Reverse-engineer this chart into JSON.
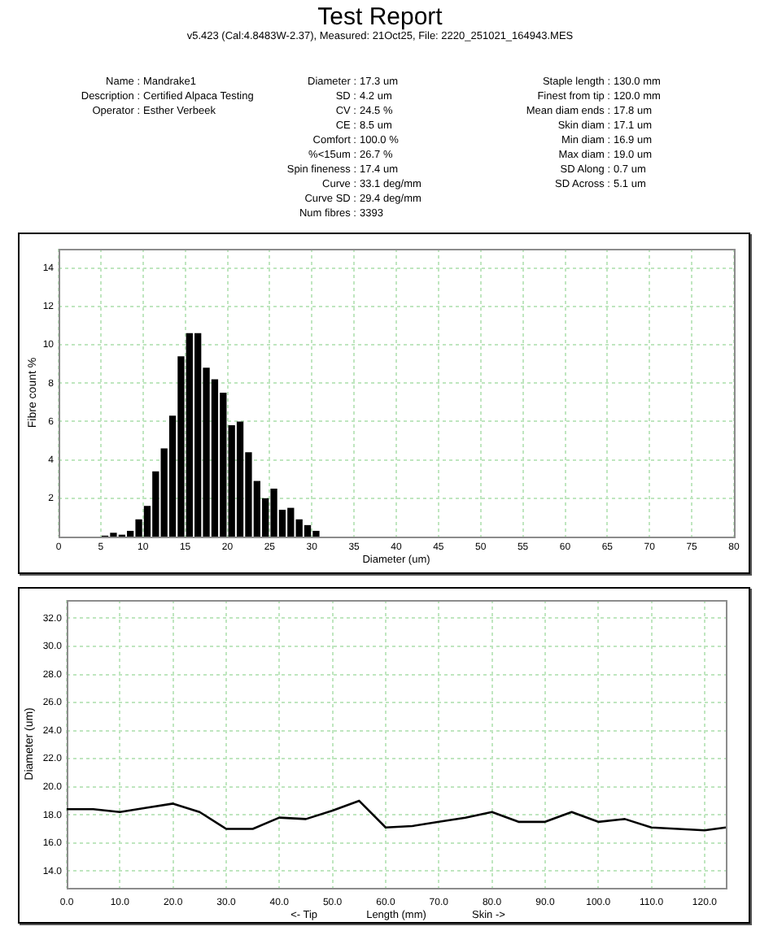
{
  "chart_data": [
    {
      "type": "other",
      "title": "Test Report",
      "subtitle": "v5.423 (Cal:4.8483W-2.37), Measured: 21Oct25, File: 2220_251021_164943.MES",
      "annotations": [
        "Name : Mandrake1",
        "Description : Certified Alpaca Testing",
        "Operator : Esther Verbeek",
        "Diameter : 17.3 um",
        "SD : 4.2 um",
        "CV : 24.5 %",
        "CE : 8.5 um",
        "Comfort : 100.0 %",
        "%<15um : 26.7 %",
        "Spin fineness : 17.4 um",
        "Curve : 33.1 deg/mm",
        "Curve SD : 29.4 deg/mm",
        "Num fibres : 3393",
        "Staple length : 130.0 mm",
        "Finest from tip : 120.0 mm",
        "Mean diam ends : 17.8 um",
        "Skin diam : 17.1 um",
        "Min diam : 16.9 um",
        "Max diam : 19.0 um",
        "SD Along : 0.7 um",
        "SD Across : 5.1 um"
      ]
    },
    {
      "type": "histogram",
      "xlabel": "Diameter (um)",
      "ylabel": "Fibre count %",
      "bins": [
        5,
        6,
        7,
        8,
        9,
        10,
        11,
        12,
        13,
        14,
        15,
        16,
        17,
        18,
        19,
        20,
        21,
        22,
        23,
        24,
        25,
        26,
        27,
        28,
        29,
        30,
        31
      ],
      "values": [
        0.05,
        0.2,
        0.1,
        0.3,
        0.9,
        1.6,
        3.4,
        4.6,
        6.3,
        9.4,
        10.6,
        10.6,
        8.8,
        8.2,
        7.5,
        5.8,
        6.0,
        4.4,
        2.9,
        2.0,
        2.5,
        1.4,
        1.5,
        0.9,
        0.6,
        0.3
      ],
      "color": "#000000",
      "xlim": [
        0,
        80
      ],
      "xticks": [
        0,
        5,
        10,
        15,
        20,
        25,
        30,
        35,
        40,
        45,
        50,
        55,
        60,
        65,
        70,
        75,
        80
      ],
      "ylim": [
        0,
        15
      ],
      "yticks": [
        2,
        4,
        6,
        8,
        10,
        12,
        14
      ],
      "grid": true
    },
    {
      "type": "line",
      "xlabel": "Length (mm)",
      "ylabel": "Diameter (um)",
      "annotations": [
        "<- Tip",
        "Skin ->"
      ],
      "x": [
        0,
        5,
        10,
        15,
        20,
        25,
        30,
        35,
        40,
        45,
        50,
        55,
        60,
        65,
        70,
        75,
        80,
        85,
        90,
        95,
        100,
        105,
        110,
        115,
        120,
        124
      ],
      "values": [
        18.4,
        18.4,
        18.2,
        18.5,
        18.8,
        18.2,
        17.0,
        17.0,
        17.8,
        17.7,
        18.3,
        19.0,
        17.1,
        17.2,
        17.5,
        17.8,
        18.2,
        17.5,
        17.5,
        18.2,
        17.5,
        17.7,
        17.1,
        17.0,
        16.9,
        17.1
      ],
      "color": "#000000",
      "xlim": [
        0,
        124
      ],
      "xticks": [
        {
          "value": 0,
          "label": "0.0"
        },
        {
          "value": 10,
          "label": "10.0"
        },
        {
          "value": 20,
          "label": "20.0"
        },
        {
          "value": 30,
          "label": "30.0"
        },
        {
          "value": 40,
          "label": "40.0"
        },
        {
          "value": 50,
          "label": "50.0"
        },
        {
          "value": 60,
          "label": "60.0"
        },
        {
          "value": 70,
          "label": "70.0"
        },
        {
          "value": 80,
          "label": "80.0"
        },
        {
          "value": 90,
          "label": "90.0"
        },
        {
          "value": 100,
          "label": "100.0"
        },
        {
          "value": 110,
          "label": "110.0"
        },
        {
          "value": 120,
          "label": "120.0"
        }
      ],
      "ylim": [
        12.8,
        33.3
      ],
      "yticks": [
        {
          "value": 14,
          "label": "14.0"
        },
        {
          "value": 16,
          "label": "16.0"
        },
        {
          "value": 18,
          "label": "18.0"
        },
        {
          "value": 20,
          "label": "20.0"
        },
        {
          "value": 22,
          "label": "22.0"
        },
        {
          "value": 24,
          "label": "24.0"
        },
        {
          "value": 26,
          "label": "26.0"
        },
        {
          "value": 28,
          "label": "28.0"
        },
        {
          "value": 30,
          "label": "30.0"
        },
        {
          "value": 32,
          "label": "32.0"
        }
      ],
      "grid": true,
      "marker": "none",
      "line_style": "solid"
    }
  ]
}
